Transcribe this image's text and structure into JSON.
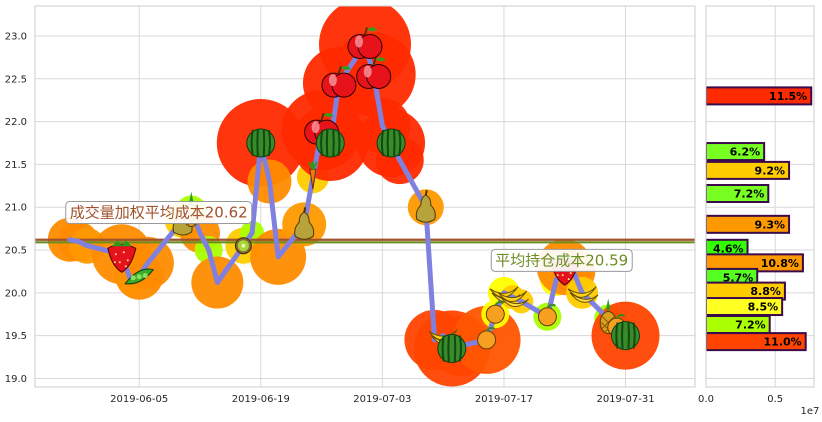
{
  "chart_data": {
    "type": "line",
    "main": {
      "x_ticks": [
        "2019-06-05",
        "2019-06-19",
        "2019-07-03",
        "2019-07-17",
        "2019-07-31"
      ],
      "y_ticks": [
        "19.0",
        "19.5",
        "20.0",
        "20.5",
        "21.0",
        "21.5",
        "22.0",
        "22.5",
        "23.0"
      ],
      "ylim": [
        18.9,
        23.35
      ],
      "xlim": [
        "2019-05-24",
        "2019-08-08"
      ],
      "grid": true,
      "price_series": {
        "color": "#8080e0",
        "points": [
          {
            "date": "2019-05-28",
            "close": 20.62,
            "fruit": "none",
            "blob": "#ff8c00",
            "blob_r": 22
          },
          {
            "date": "2019-05-29",
            "close": 20.6,
            "fruit": "none",
            "blob": "#ff8c00",
            "blob_r": 20
          },
          {
            "date": "2019-05-30",
            "close": 20.55,
            "fruit": "none",
            "blob": "#ff9900",
            "blob_r": 18
          },
          {
            "date": "2019-06-03",
            "close": 20.45,
            "fruit": "strawberry",
            "blob": "#ff8c00",
            "blob_r": 30
          },
          {
            "date": "2019-06-04",
            "close": 20.15,
            "fruit": "none",
            "blob": "#ffff00",
            "blob_r": 14
          },
          {
            "date": "2019-06-05",
            "close": 20.2,
            "fruit": "peapod",
            "blob": "#ff8c00",
            "blob_r": 24
          },
          {
            "date": "2019-06-06",
            "close": 20.35,
            "fruit": "none",
            "blob": "#ff8c00",
            "blob_r": 26
          },
          {
            "date": "2019-06-10",
            "close": 20.85,
            "fruit": "pear",
            "blob": "#ffcc00",
            "blob_r": 18
          },
          {
            "date": "2019-06-11",
            "close": 20.95,
            "fruit": "pineapple",
            "blob": "#aaff00",
            "blob_r": 16
          },
          {
            "date": "2019-06-12",
            "close": 20.7,
            "fruit": "none",
            "blob": "#ff8c00",
            "blob_r": 20
          },
          {
            "date": "2019-06-13",
            "close": 20.5,
            "fruit": "none",
            "blob": "#aaff00",
            "blob_r": 14
          },
          {
            "date": "2019-06-14",
            "close": 20.12,
            "fruit": "none",
            "blob": "#ff8c00",
            "blob_r": 26
          },
          {
            "date": "2019-06-17",
            "close": 20.55,
            "fruit": "kiwi",
            "blob": "#ffcc00",
            "blob_r": 18
          },
          {
            "date": "2019-06-18",
            "close": 20.7,
            "fruit": "none",
            "blob": "#aaff00",
            "blob_r": 12
          },
          {
            "date": "2019-06-19",
            "close": 21.75,
            "fruit": "watermelon",
            "blob": "#ff2a00",
            "blob_r": 44
          },
          {
            "date": "2019-06-20",
            "close": 21.3,
            "fruit": "none",
            "blob": "#ff8c00",
            "blob_r": 22
          },
          {
            "date": "2019-06-21",
            "close": 20.42,
            "fruit": "none",
            "blob": "#ff8c00",
            "blob_r": 28
          },
          {
            "date": "2019-06-24",
            "close": 20.8,
            "fruit": "pear",
            "blob": "#ff9900",
            "blob_r": 22
          },
          {
            "date": "2019-06-25",
            "close": 21.35,
            "fruit": "carrot",
            "blob": "#ffcc00",
            "blob_r": 16
          },
          {
            "date": "2019-06-26",
            "close": 21.9,
            "fruit": "apple",
            "blob": "#ff2a00",
            "blob_r": 40
          },
          {
            "date": "2019-06-27",
            "close": 21.75,
            "fruit": "watermelon",
            "blob": "#ff2a00",
            "blob_r": 38
          },
          {
            "date": "2019-06-28",
            "close": 22.45,
            "fruit": "apple",
            "blob": "#ff2a00",
            "blob_r": 36
          },
          {
            "date": "2019-07-01",
            "close": 22.9,
            "fruit": "apple",
            "blob": "#ff2a00",
            "blob_r": 46
          },
          {
            "date": "2019-07-02",
            "close": 22.55,
            "fruit": "apple",
            "blob": "#ff2a00",
            "blob_r": 42
          },
          {
            "date": "2019-07-03",
            "close": 21.95,
            "fruit": "none",
            "blob": "#ff2a00",
            "blob_r": 28
          },
          {
            "date": "2019-07-04",
            "close": 21.75,
            "fruit": "watermelon",
            "blob": "#ff2a00",
            "blob_r": 34
          },
          {
            "date": "2019-07-05",
            "close": 21.55,
            "fruit": "none",
            "blob": "#ff2a00",
            "blob_r": 24
          },
          {
            "date": "2019-07-08",
            "close": 21.0,
            "fruit": "pear",
            "blob": "#ff9900",
            "blob_r": 18
          },
          {
            "date": "2019-07-09",
            "close": 19.45,
            "fruit": "none",
            "blob": "#ff4400",
            "blob_r": 30
          },
          {
            "date": "2019-07-10",
            "close": 19.5,
            "fruit": "banana",
            "blob": "#ffff00",
            "blob_r": 12
          },
          {
            "date": "2019-07-11",
            "close": 19.35,
            "fruit": "watermelon",
            "blob": "#ff4400",
            "blob_r": 38
          },
          {
            "date": "2019-07-12",
            "close": 19.38,
            "fruit": "none",
            "blob": "#ff4400",
            "blob_r": 30
          },
          {
            "date": "2019-07-15",
            "close": 19.45,
            "fruit": "orange",
            "blob": "#ff5500",
            "blob_r": 34
          },
          {
            "date": "2019-07-16",
            "close": 19.75,
            "fruit": "orange",
            "blob": "#ffff00",
            "blob_r": 14
          },
          {
            "date": "2019-07-17",
            "close": 20.0,
            "fruit": "banana",
            "blob": "#ffff00",
            "blob_r": 16
          },
          {
            "date": "2019-07-18",
            "close": 19.95,
            "fruit": "banana",
            "blob": "#ffcc00",
            "blob_r": 12
          },
          {
            "date": "2019-07-19",
            "close": 19.9,
            "fruit": "none",
            "blob": "#ffcc00",
            "blob_r": 12
          },
          {
            "date": "2019-07-22",
            "close": 19.72,
            "fruit": "orange",
            "blob": "#aaff00",
            "blob_r": 14
          },
          {
            "date": "2019-07-23",
            "close": 20.15,
            "fruit": "none",
            "blob": "#ffff00",
            "blob_r": 16
          },
          {
            "date": "2019-07-24",
            "close": 20.3,
            "fruit": "strawberry",
            "blob": "#ff8c00",
            "blob_r": 28
          },
          {
            "date": "2019-07-25",
            "close": 20.25,
            "fruit": "none",
            "blob": "#ff8c00",
            "blob_r": 22
          },
          {
            "date": "2019-07-26",
            "close": 20.0,
            "fruit": "banana",
            "blob": "#ffcc00",
            "blob_r": 16
          },
          {
            "date": "2019-07-29",
            "close": 19.7,
            "fruit": "pineapple",
            "blob": "#aaff00",
            "blob_r": 14
          },
          {
            "date": "2019-07-30",
            "close": 19.6,
            "fruit": "orange",
            "blob": "#ffcc00",
            "blob_r": 14
          },
          {
            "date": "2019-07-31",
            "close": 19.5,
            "fruit": "watermelon",
            "blob": "#ff4400",
            "blob_r": 34
          }
        ]
      },
      "horizontal_lines": [
        {
          "value": 20.62,
          "color": "#a0522d"
        },
        {
          "value": 20.59,
          "color": "#6b8e23"
        }
      ],
      "annotations": [
        {
          "text": "成交量加权平均成本20.62",
          "color": "#a0522d",
          "anchor_date": "2019-05-28",
          "anchor_value": 20.88
        },
        {
          "text": "平均持仓成本20.59",
          "color": "#6b8e23",
          "anchor_date": "2019-07-16",
          "anchor_value": 20.32
        }
      ]
    },
    "side": {
      "type": "barh",
      "x_ticks": [
        "0.0",
        "0.5"
      ],
      "xlim": [
        0,
        7800000
      ],
      "x_multiplier": "1e7",
      "ylim": [
        18.9,
        23.35
      ],
      "bars": [
        {
          "price": 22.3,
          "volume": 7600000,
          "label": "11.5%",
          "color": "#ff2a00"
        },
        {
          "price": 21.65,
          "volume": 4200000,
          "label": "6.2%",
          "color": "#77ff22"
        },
        {
          "price": 21.43,
          "volume": 6000000,
          "label": "9.2%",
          "color": "#ffcc00"
        },
        {
          "price": 21.16,
          "volume": 4500000,
          "label": "7.2%",
          "color": "#77ff22"
        },
        {
          "price": 20.8,
          "volume": 6000000,
          "label": "9.3%",
          "color": "#ff9900"
        },
        {
          "price": 20.52,
          "volume": 3000000,
          "label": "4.6%",
          "color": "#33ff00"
        },
        {
          "price": 20.35,
          "volume": 7000000,
          "label": "10.8%",
          "color": "#ff9900"
        },
        {
          "price": 20.18,
          "volume": 3700000,
          "label": "5.7%",
          "color": "#55ff22"
        },
        {
          "price": 20.02,
          "volume": 5700000,
          "label": "8.8%",
          "color": "#ffcc00"
        },
        {
          "price": 19.84,
          "volume": 5500000,
          "label": "8.5%",
          "color": "#ffff22"
        },
        {
          "price": 19.63,
          "volume": 4600000,
          "label": "7.2%",
          "color": "#aaff00"
        },
        {
          "price": 19.43,
          "volume": 7200000,
          "label": "11.0%",
          "color": "#ff4400"
        }
      ]
    }
  }
}
